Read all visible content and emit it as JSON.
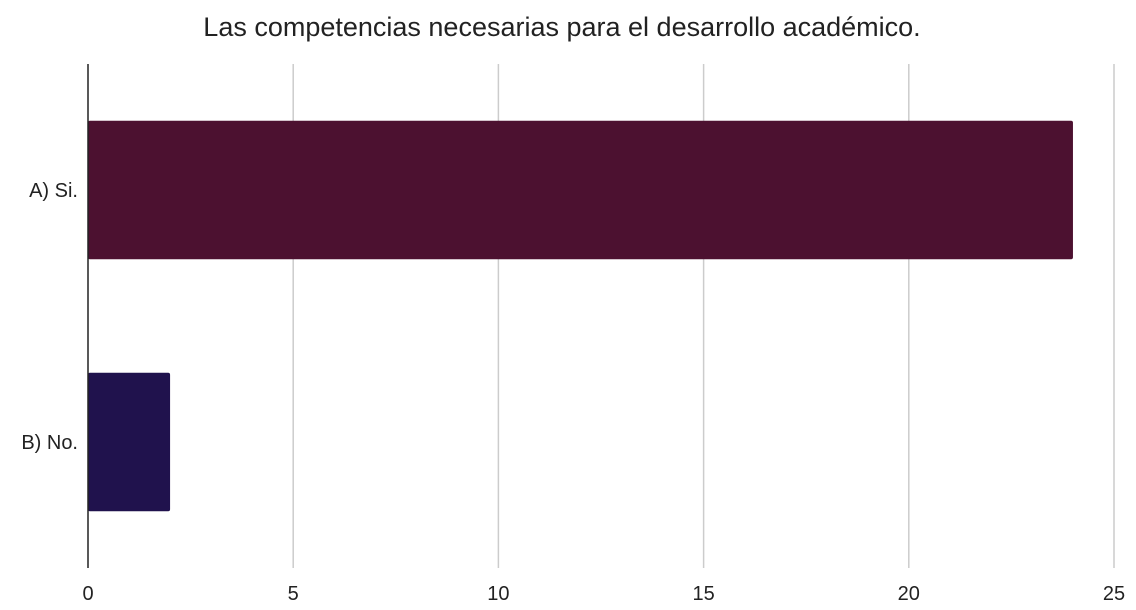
{
  "chart_data": {
    "type": "bar",
    "orientation": "horizontal",
    "title": "Las competencias necesarias para el desarrollo académico.",
    "categories": [
      "A) Si.",
      "B) No."
    ],
    "values": [
      24,
      2
    ],
    "colors": [
      "#4c1130",
      "#20124d"
    ],
    "xlim": [
      0,
      25
    ],
    "xticks": [
      0,
      5,
      10,
      15,
      20,
      25
    ],
    "xlabel": "",
    "ylabel": "",
    "grid": true,
    "legend": "none"
  }
}
